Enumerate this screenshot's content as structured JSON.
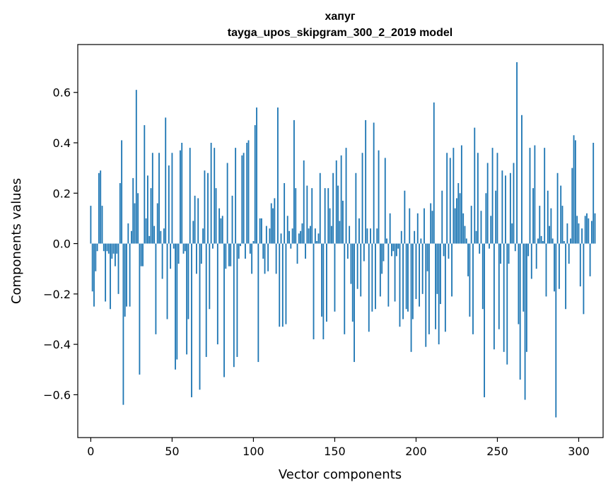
{
  "chart_data": {
    "type": "bar",
    "title": "хапуг",
    "subtitle": "tayga_upos_skipgram_300_2_2019 model",
    "xlabel": "Vector components",
    "ylabel": "Components values",
    "xlim": [
      -8,
      315
    ],
    "ylim": [
      -0.77,
      0.79
    ],
    "xticks": [
      0,
      50,
      100,
      150,
      200,
      250,
      300
    ],
    "yticks": [
      -0.6,
      -0.4,
      -0.2,
      0.0,
      0.2,
      0.4,
      0.6
    ],
    "ytick_labels": [
      "−0.6",
      "−0.4",
      "−0.2",
      "0.0",
      "0.2",
      "0.4",
      "0.6"
    ],
    "xtick_labels": [
      "0",
      "50",
      "100",
      "150",
      "200",
      "250",
      "300"
    ],
    "bar_color": "#1f77b4",
    "values": [
      0.15,
      -0.19,
      -0.25,
      -0.11,
      -0.03,
      0.28,
      0.29,
      0.15,
      -0.03,
      -0.23,
      -0.03,
      -0.04,
      -0.26,
      -0.06,
      -0.04,
      -0.09,
      -0.04,
      -0.2,
      0.24,
      0.41,
      -0.64,
      -0.29,
      -0.25,
      0.08,
      -0.25,
      0.05,
      0.26,
      0.16,
      0.61,
      0.2,
      -0.52,
      -0.09,
      -0.09,
      0.47,
      0.1,
      0.27,
      0.03,
      0.22,
      0.36,
      0.07,
      -0.36,
      0.16,
      0.36,
      0.05,
      -0.14,
      0.06,
      0.5,
      -0.3,
      0.31,
      -0.1,
      0.36,
      -0.02,
      -0.5,
      -0.46,
      -0.08,
      0.37,
      0.4,
      -0.04,
      -0.03,
      -0.44,
      -0.3,
      0.38,
      -0.61,
      0.09,
      0.19,
      -0.12,
      0.18,
      -0.58,
      -0.08,
      0.06,
      0.29,
      -0.45,
      0.28,
      -0.26,
      0.4,
      -0.02,
      0.38,
      0.22,
      -0.4,
      0.14,
      0.1,
      0.11,
      -0.53,
      -0.1,
      0.32,
      -0.09,
      -0.09,
      0.19,
      -0.49,
      0.38,
      -0.45,
      -0.06,
      -0.01,
      0.35,
      0.36,
      -0.06,
      0.4,
      0.41,
      -0.04,
      -0.12,
      0.01,
      0.47,
      0.54,
      -0.47,
      0.1,
      0.1,
      -0.06,
      -0.12,
      0.07,
      -0.11,
      0.06,
      0.16,
      0.14,
      0.18,
      -0.12,
      0.54,
      -0.33,
      0.04,
      -0.33,
      0.24,
      -0.32,
      0.11,
      0.05,
      -0.02,
      0.06,
      0.49,
      0.22,
      -0.08,
      0.04,
      0.05,
      0.08,
      0.33,
      -0.06,
      0.23,
      0.06,
      0.07,
      0.22,
      -0.38,
      0.06,
      0.01,
      0.04,
      0.28,
      -0.29,
      -0.38,
      0.22,
      -0.31,
      0.22,
      0.14,
      0.07,
      0.28,
      -0.27,
      0.33,
      0.23,
      0.09,
      0.35,
      0.17,
      -0.36,
      0.38,
      -0.06,
      0.07,
      -0.16,
      -0.31,
      -0.47,
      0.28,
      -0.18,
      0.1,
      -0.21,
      0.36,
      -0.07,
      0.49,
      0.06,
      -0.35,
      0.06,
      -0.27,
      0.48,
      -0.26,
      0.06,
      0.37,
      -0.21,
      -0.12,
      -0.07,
      0.34,
      0.02,
      -0.25,
      0.12,
      -0.05,
      -0.03,
      -0.23,
      -0.05,
      -0.02,
      -0.33,
      0.05,
      -0.3,
      0.21,
      -0.26,
      -0.27,
      0.14,
      -0.43,
      -0.3,
      0.05,
      -0.22,
      0.12,
      -0.25,
      0.02,
      -0.2,
      0.14,
      -0.41,
      -0.11,
      -0.36,
      0.16,
      0.13,
      0.56,
      -0.34,
      -0.2,
      -0.4,
      -0.24,
      0.21,
      -0.05,
      -0.35,
      0.36,
      -0.06,
      0.34,
      -0.21,
      0.38,
      0.14,
      0.18,
      0.24,
      0.2,
      0.39,
      0.12,
      0.07,
      0.02,
      -0.13,
      -0.29,
      0.15,
      -0.36,
      0.46,
      0.05,
      0.36,
      -0.04,
      0.13,
      -0.26,
      -0.61,
      0.2,
      0.32,
      -0.02,
      0.11,
      0.38,
      -0.42,
      0.21,
      0.36,
      -0.34,
      -0.08,
      0.29,
      -0.43,
      0.27,
      -0.48,
      -0.08,
      0.28,
      0.08,
      0.32,
      -0.03,
      0.72,
      -0.32,
      -0.54,
      0.51,
      -0.27,
      -0.62,
      -0.43,
      -0.05,
      0.38,
      -0.14,
      0.22,
      0.39,
      -0.1,
      0.02,
      0.15,
      0.03,
      0.01,
      0.38,
      -0.21,
      0.21,
      0.07,
      0.14,
      0.02,
      -0.19,
      -0.69,
      0.28,
      -0.18,
      0.23,
      0.15,
      0.01,
      -0.26,
      0.08,
      -0.08,
      0.02,
      0.3,
      0.43,
      0.41,
      0.11,
      0.08,
      -0.17,
      0.06,
      -0.28,
      0.11,
      0.12,
      0.1,
      -0.13,
      0.09,
      0.4,
      0.12
    ]
  }
}
